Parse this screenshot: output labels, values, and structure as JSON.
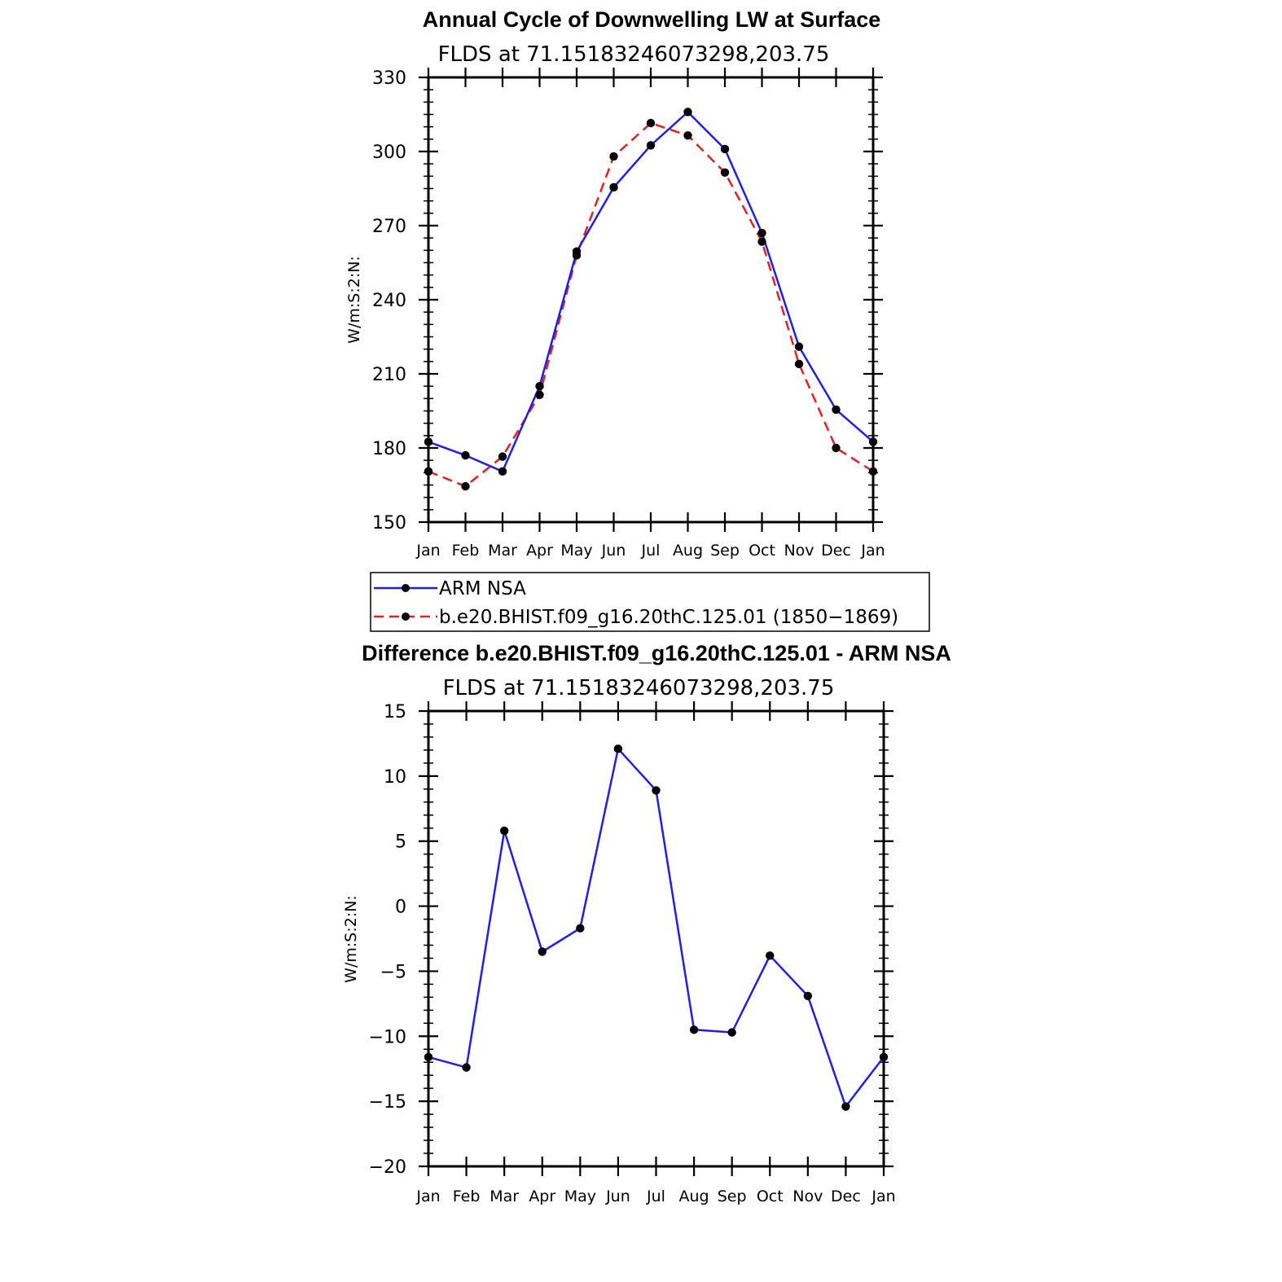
{
  "chart_data": [
    {
      "type": "line",
      "title": "Annual Cycle of Downwelling LW at Surface",
      "subtitle": "FLDS at 71.15183246073298,203.75",
      "xlabel": "",
      "ylabel": "W/m:S:2:N:",
      "categories": [
        "Jan",
        "Feb",
        "Mar",
        "Apr",
        "May",
        "Jun",
        "Jul",
        "Aug",
        "Sep",
        "Oct",
        "Nov",
        "Dec",
        "Jan"
      ],
      "ylim": [
        150,
        330
      ],
      "yticks": [
        "150",
        "180",
        "210",
        "240",
        "270",
        "300",
        "330"
      ],
      "grid": false,
      "series": [
        {
          "name": "ARM NSA",
          "color": "#1f1fe6",
          "dash": "solid",
          "values": [
            182.5,
            177,
            170.5,
            205,
            259.5,
            285.5,
            302.5,
            316,
            301,
            267,
            221,
            195.5,
            182.5
          ]
        },
        {
          "name": "b.e20.BHIST.f09_g16.20thC.125.01 (1850−1869)",
          "color": "#e81f1f",
          "dash": "dashed",
          "values": [
            170.5,
            164.5,
            176.5,
            201.5,
            258,
            298,
            311.5,
            306.5,
            291.5,
            263.5,
            214,
            180,
            170.5
          ]
        }
      ]
    },
    {
      "type": "line",
      "title": "Difference b.e20.BHIST.f09_g16.20thC.125.01 - ARM NSA",
      "subtitle": "FLDS at 71.15183246073298,203.75",
      "xlabel": "",
      "ylabel": "W/m:S:2:N:",
      "categories": [
        "Jan",
        "Feb",
        "Mar",
        "Apr",
        "May",
        "Jun",
        "Jul",
        "Aug",
        "Sep",
        "Oct",
        "Nov",
        "Dec",
        "Jan"
      ],
      "ylim": [
        -20,
        15
      ],
      "yticks": [
        "−20",
        "−15",
        "−10",
        "−5",
        "0",
        "5",
        "10",
        "15"
      ],
      "grid": false,
      "series": [
        {
          "name": "Difference",
          "color": "#1f1fe6",
          "dash": "solid",
          "values": [
            -11.6,
            -12.4,
            5.8,
            -3.5,
            -1.7,
            12.1,
            8.9,
            -9.5,
            -9.7,
            -3.8,
            -6.9,
            -15.4,
            -11.6
          ]
        }
      ]
    }
  ]
}
